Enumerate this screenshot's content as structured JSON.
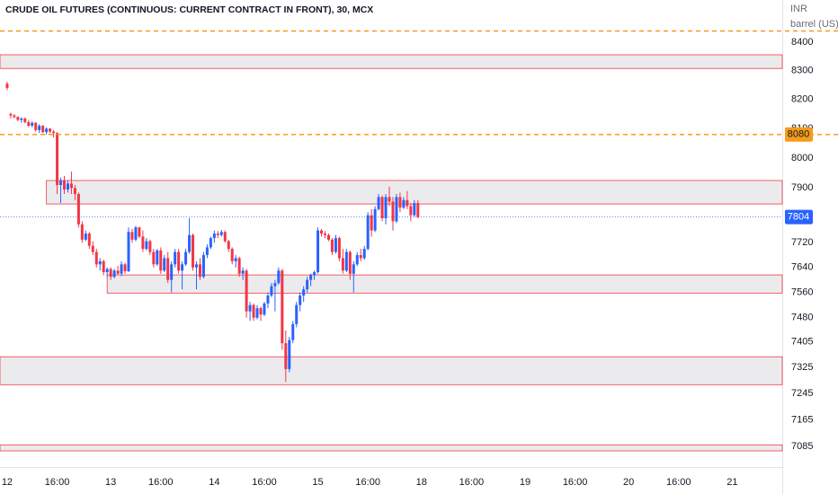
{
  "chart_data": {
    "type": "candlestick",
    "title": "CRUDE OIL FUTURES (CONTINUOUS: CURRENT CONTRACT IN FRONT), 30, MCX",
    "currency": "INR",
    "unit": "barrel (US)",
    "log_scale": true,
    "grid": false,
    "up_color": "#2962ff",
    "down_color": "#f23645",
    "x": [
      0,
      1,
      2,
      3,
      4,
      5,
      6,
      7,
      8,
      9,
      10,
      11,
      12,
      13,
      14,
      15,
      16,
      17,
      18,
      19,
      20,
      21,
      22,
      23,
      24,
      25,
      26,
      27,
      28,
      29,
      30,
      31,
      32,
      33,
      34,
      35,
      36,
      37,
      38,
      39,
      40,
      41,
      42,
      43,
      44,
      45,
      46,
      47,
      48,
      49,
      50,
      51,
      52,
      53,
      54,
      55,
      56,
      57,
      58,
      59,
      60,
      61,
      62,
      63,
      64,
      65,
      66,
      67,
      68,
      69,
      70,
      71,
      72,
      73,
      74,
      75,
      76,
      77,
      78,
      79,
      80,
      81,
      82,
      83,
      84,
      85,
      86,
      87,
      88,
      89,
      90,
      91,
      92,
      93,
      94,
      95,
      96,
      97,
      98,
      99,
      100,
      101,
      102,
      103,
      104,
      105,
      106,
      107,
      108,
      109,
      110,
      111,
      112,
      113,
      114,
      115
    ],
    "open": [
      8255,
      8150,
      8145,
      8140,
      8130,
      8135,
      8122,
      8110,
      8120,
      8095,
      8110,
      8088,
      8100,
      8090,
      8085,
      7910,
      7925,
      7895,
      7915,
      7900,
      7880,
      7780,
      7730,
      7750,
      7710,
      7690,
      7650,
      7660,
      7625,
      7635,
      7610,
      7630,
      7620,
      7650,
      7628,
      7755,
      7730,
      7770,
      7740,
      7700,
      7725,
      7690,
      7650,
      7695,
      7630,
      7670,
      7600,
      7650,
      7690,
      7630,
      7650,
      7690,
      7745,
      7640,
      7650,
      7610,
      7680,
      7705,
      7735,
      7750,
      7745,
      7755,
      7725,
      7700,
      7660,
      7670,
      7620,
      7630,
      7500,
      7520,
      7480,
      7510,
      7490,
      7525,
      7550,
      7580,
      7590,
      7630,
      7400,
      7320,
      7410,
      7460,
      7520,
      7550,
      7570,
      7600,
      7615,
      7625,
      7760,
      7750,
      7745,
      7730,
      7690,
      7735,
      7670,
      7630,
      7690,
      7620,
      7650,
      7680,
      7670,
      7700,
      7810,
      7760,
      7830,
      7870,
      7800,
      7870,
      7855,
      7790,
      7870,
      7835,
      7860,
      7840,
      7810,
      7850
    ],
    "high": [
      8262,
      8155,
      8150,
      8142,
      8138,
      8138,
      8130,
      8125,
      8122,
      8115,
      8112,
      8105,
      8102,
      8095,
      8088,
      7935,
      7940,
      7925,
      7955,
      7910,
      7885,
      7790,
      7760,
      7755,
      7725,
      7700,
      7670,
      7665,
      7640,
      7640,
      7635,
      7645,
      7660,
      7655,
      7770,
      7765,
      7775,
      7772,
      7760,
      7735,
      7730,
      7700,
      7700,
      7705,
      7680,
      7690,
      7660,
      7700,
      7700,
      7660,
      7700,
      7800,
      7750,
      7660,
      7670,
      7690,
      7715,
      7740,
      7760,
      7758,
      7762,
      7760,
      7730,
      7705,
      7680,
      7675,
      7640,
      7635,
      7530,
      7525,
      7520,
      7515,
      7530,
      7560,
      7590,
      7600,
      7640,
      7635,
      7440,
      7420,
      7470,
      7530,
      7560,
      7580,
      7610,
      7620,
      7630,
      7770,
      7765,
      7758,
      7750,
      7735,
      7745,
      7740,
      7700,
      7700,
      7695,
      7660,
      7690,
      7700,
      7710,
      7820,
      7830,
      7840,
      7880,
      7875,
      7880,
      7905,
      7870,
      7880,
      7885,
      7870,
      7890,
      7850,
      7860,
      7860
    ],
    "low": [
      8232,
      8135,
      8135,
      8125,
      8120,
      8118,
      8105,
      8105,
      8090,
      8085,
      8085,
      8080,
      8085,
      8070,
      7880,
      7850,
      7880,
      7885,
      7880,
      7860,
      7770,
      7720,
      7725,
      7700,
      7680,
      7640,
      7630,
      7615,
      7610,
      7600,
      7605,
      7615,
      7612,
      7620,
      7625,
      7720,
      7725,
      7735,
      7690,
      7695,
      7680,
      7640,
      7645,
      7620,
      7625,
      7590,
      7560,
      7640,
      7620,
      7570,
      7645,
      7685,
      7630,
      7570,
      7600,
      7605,
      7670,
      7700,
      7720,
      7735,
      7740,
      7720,
      7690,
      7650,
      7640,
      7610,
      7600,
      7480,
      7470,
      7470,
      7475,
      7470,
      7485,
      7510,
      7545,
      7500,
      7585,
      7380,
      7280,
      7310,
      7400,
      7450,
      7500,
      7530,
      7560,
      7580,
      7600,
      7620,
      7740,
      7735,
      7725,
      7680,
      7685,
      7660,
      7620,
      7625,
      7600,
      7560,
      7645,
      7660,
      7665,
      7695,
      7740,
      7755,
      7825,
      7790,
      7780,
      7840,
      7760,
      7785,
      7820,
      7830,
      7830,
      7790,
      7805,
      7800
    ],
    "close": [
      8240,
      8145,
      8140,
      8130,
      8135,
      8122,
      8110,
      8120,
      8095,
      8110,
      8088,
      8100,
      8090,
      8085,
      7910,
      7925,
      7895,
      7915,
      7900,
      7880,
      7780,
      7730,
      7750,
      7710,
      7690,
      7650,
      7660,
      7625,
      7635,
      7610,
      7630,
      7620,
      7650,
      7628,
      7755,
      7730,
      7770,
      7740,
      7700,
      7725,
      7690,
      7650,
      7695,
      7630,
      7670,
      7600,
      7650,
      7690,
      7630,
      7650,
      7690,
      7745,
      7640,
      7650,
      7610,
      7680,
      7705,
      7735,
      7750,
      7745,
      7755,
      7725,
      7700,
      7660,
      7670,
      7620,
      7630,
      7500,
      7520,
      7480,
      7510,
      7490,
      7525,
      7550,
      7580,
      7590,
      7630,
      7400,
      7320,
      7410,
      7460,
      7520,
      7550,
      7570,
      7600,
      7615,
      7625,
      7760,
      7750,
      7745,
      7730,
      7690,
      7735,
      7670,
      7630,
      7690,
      7620,
      7650,
      7680,
      7670,
      7700,
      7810,
      7760,
      7830,
      7870,
      7800,
      7870,
      7855,
      7790,
      7870,
      7835,
      7860,
      7840,
      7810,
      7850,
      7804
    ],
    "zones": [
      {
        "low": 8308,
        "high": 8356
      },
      {
        "low": 7847,
        "high": 7925,
        "start": 11
      },
      {
        "low": 7558,
        "high": 7616,
        "start": 28
      },
      {
        "low": 7272,
        "high": 7358
      },
      {
        "low": 7072,
        "high": 7090
      }
    ],
    "zone_color": "#f23645",
    "levels": [
      8440,
      8080
    ],
    "level_color": "#f59c1a",
    "last_price": 7804,
    "xlim": [
      -2,
      217
    ],
    "xticks": [
      {
        "value": 0,
        "label": "12"
      },
      {
        "value": 14,
        "label": "16:00"
      },
      {
        "value": 29,
        "label": "13"
      },
      {
        "value": 43,
        "label": "16:00"
      },
      {
        "value": 58,
        "label": "14"
      },
      {
        "value": 72,
        "label": "16:00"
      },
      {
        "value": 87,
        "label": "15"
      },
      {
        "value": 101,
        "label": "16:00"
      },
      {
        "value": 116,
        "label": "18"
      },
      {
        "value": 130,
        "label": "16:00"
      },
      {
        "value": 145,
        "label": "19"
      },
      {
        "value": 159,
        "label": "16:00"
      },
      {
        "value": 174,
        "label": "20"
      },
      {
        "value": 188,
        "label": "16:00"
      },
      {
        "value": 203,
        "label": "21"
      }
    ],
    "ylim": [
      7024,
      8551
    ],
    "yticks": [
      8400,
      8300,
      8200,
      8100,
      8000,
      7900,
      7720,
      7640,
      7560,
      7480,
      7405,
      7325,
      7245,
      7165,
      7085
    ]
  }
}
